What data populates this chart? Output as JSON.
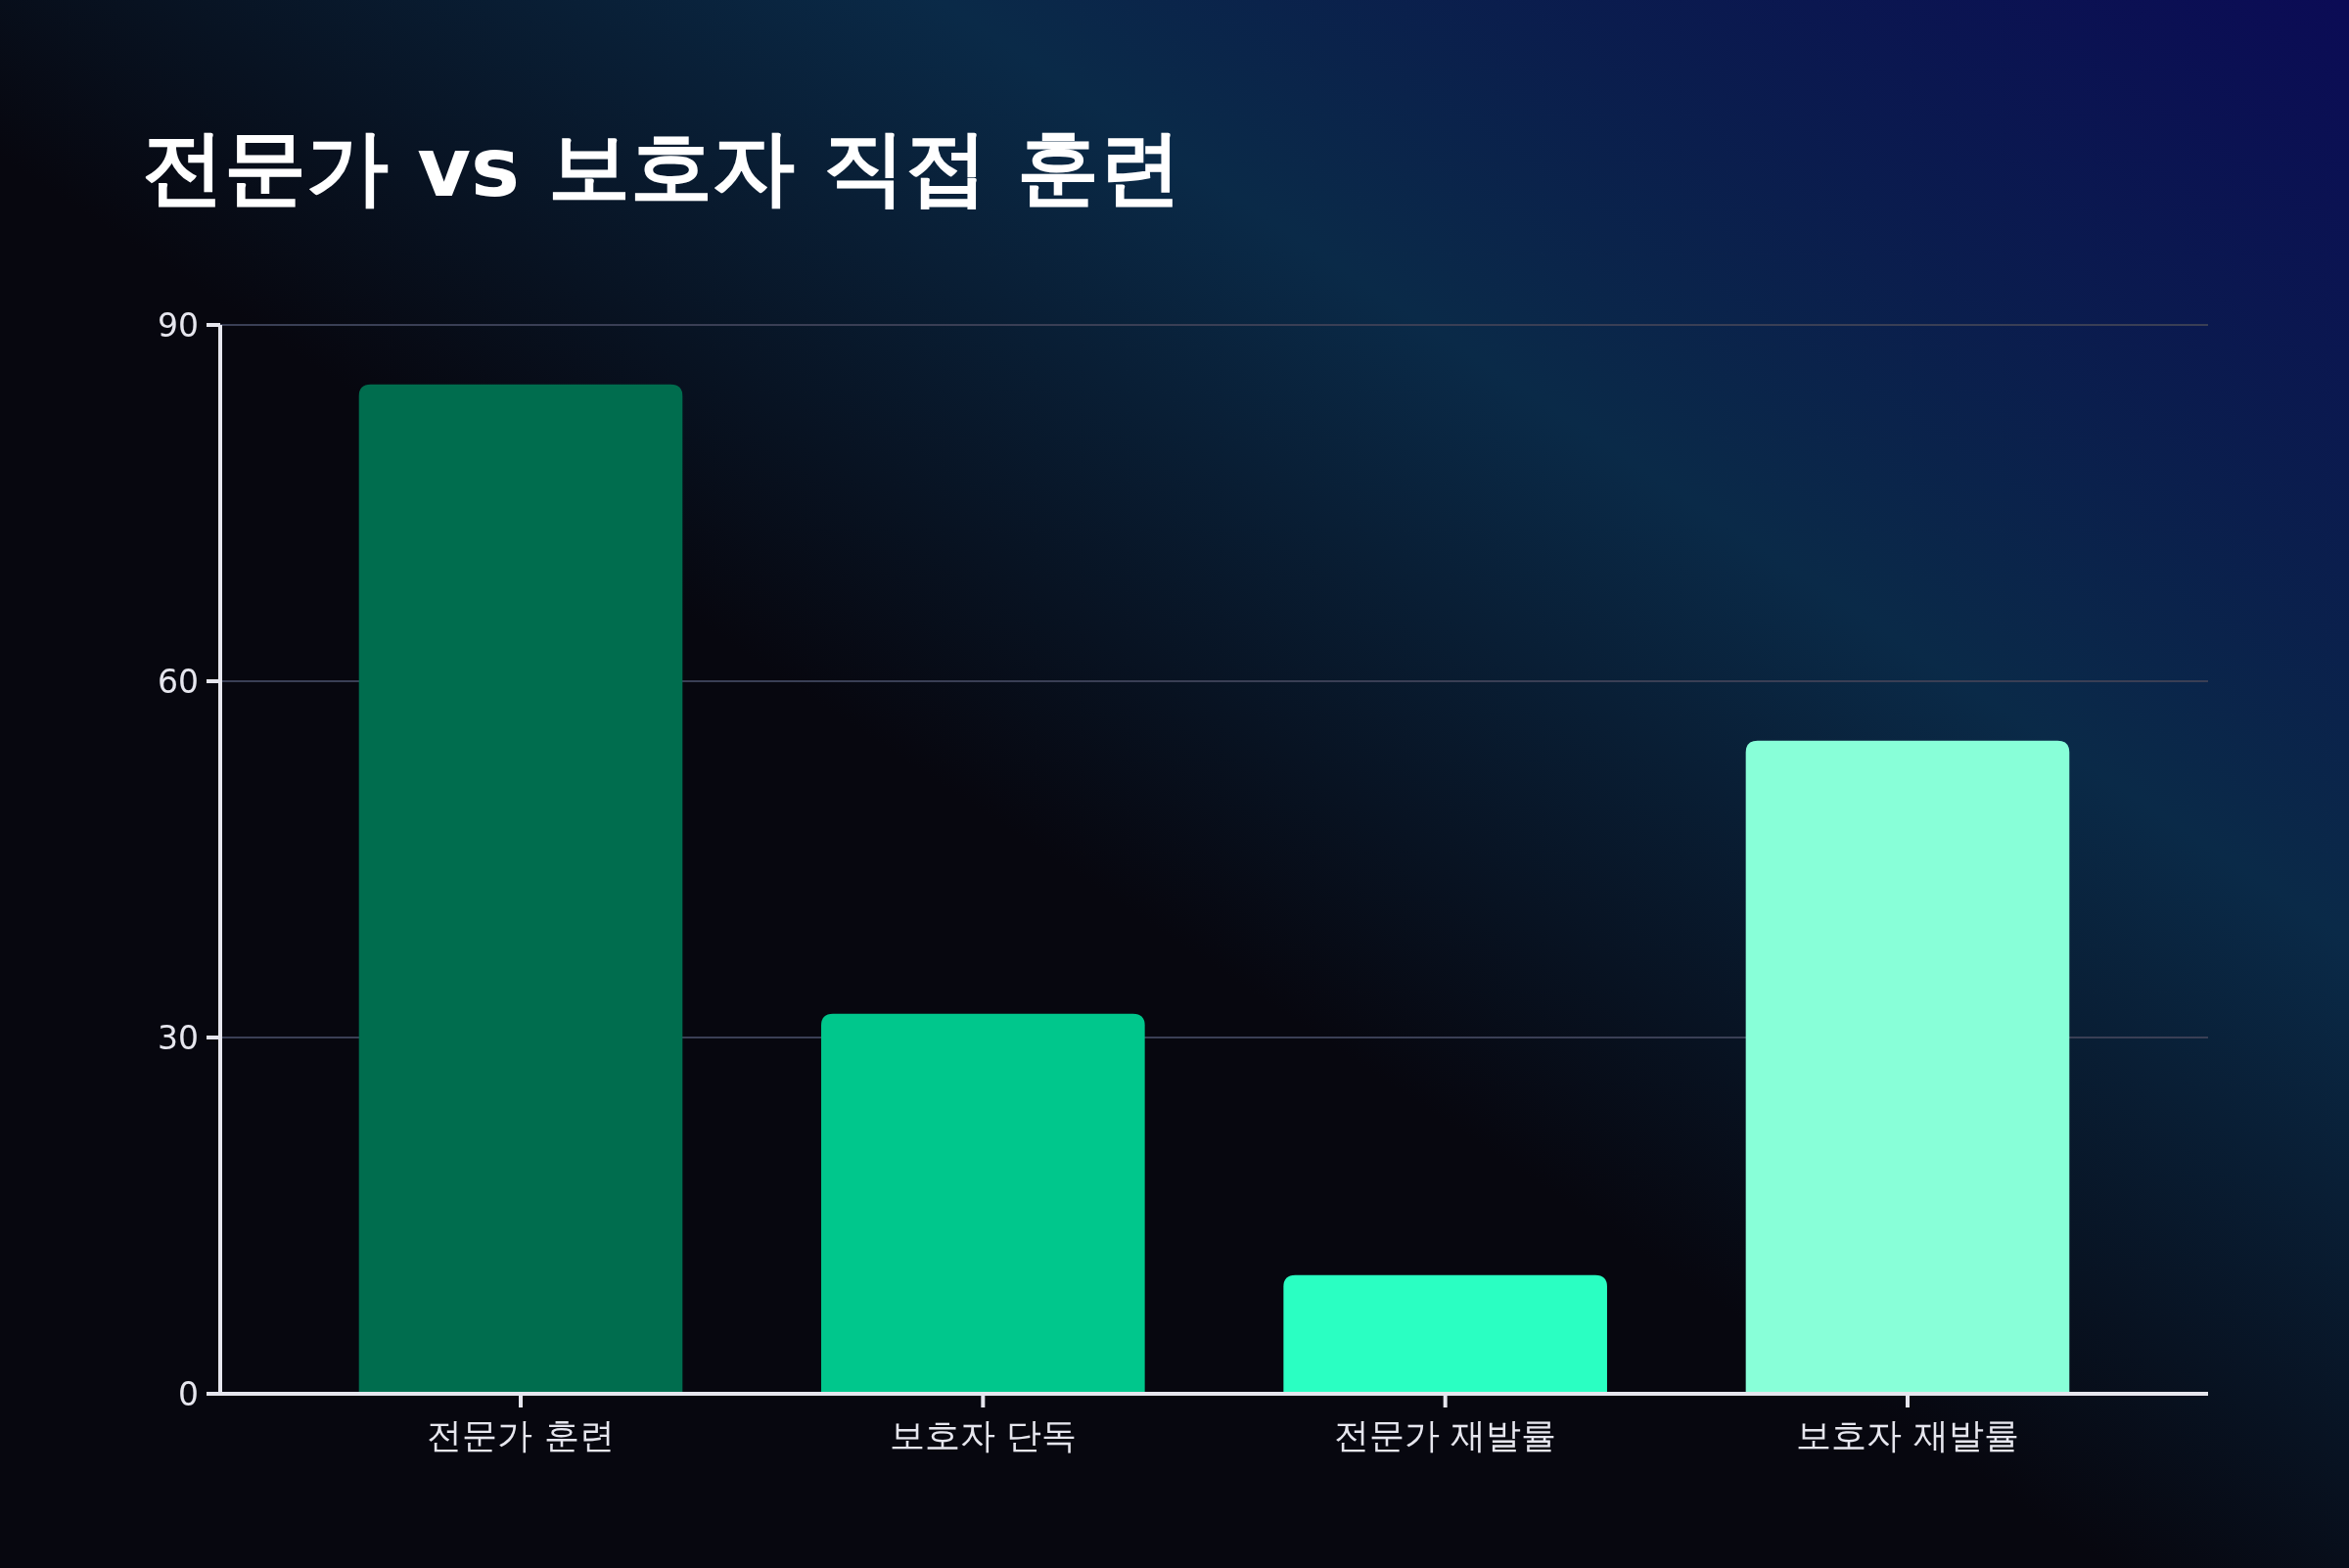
{
  "chart_data": {
    "type": "bar",
    "title": "전문가 vs 보호자 직접 훈련",
    "categories": [
      "전문가 훈련",
      "보호자 단독",
      "전문가 재발률",
      "보호자 재발률"
    ],
    "values": [
      85,
      32,
      10,
      55
    ],
    "colors": [
      "#006d4e",
      "#00c78c",
      "#2affc2",
      "#88ffd8"
    ],
    "ylim": [
      0,
      90
    ],
    "yticks": [
      0,
      30,
      60,
      90
    ],
    "grid": "y"
  }
}
